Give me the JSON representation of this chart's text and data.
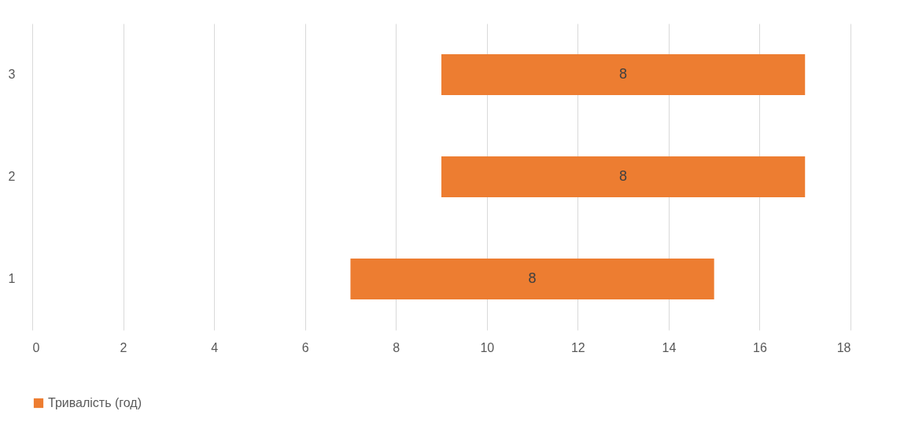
{
  "chart_data": {
    "type": "bar",
    "orientation": "horizontal",
    "categories": [
      "3",
      "2",
      "1"
    ],
    "series": [
      {
        "name": "Тривалість (год)",
        "color": "#ed7d31",
        "values": [
          8,
          8,
          8
        ],
        "base": [
          9,
          9,
          7
        ]
      }
    ],
    "xlim": [
      0,
      18
    ],
    "xticks": [
      0,
      2,
      4,
      6,
      8,
      10,
      12,
      14,
      16,
      18
    ],
    "grid": "x",
    "legend": "bottom",
    "data_labels": true
  }
}
